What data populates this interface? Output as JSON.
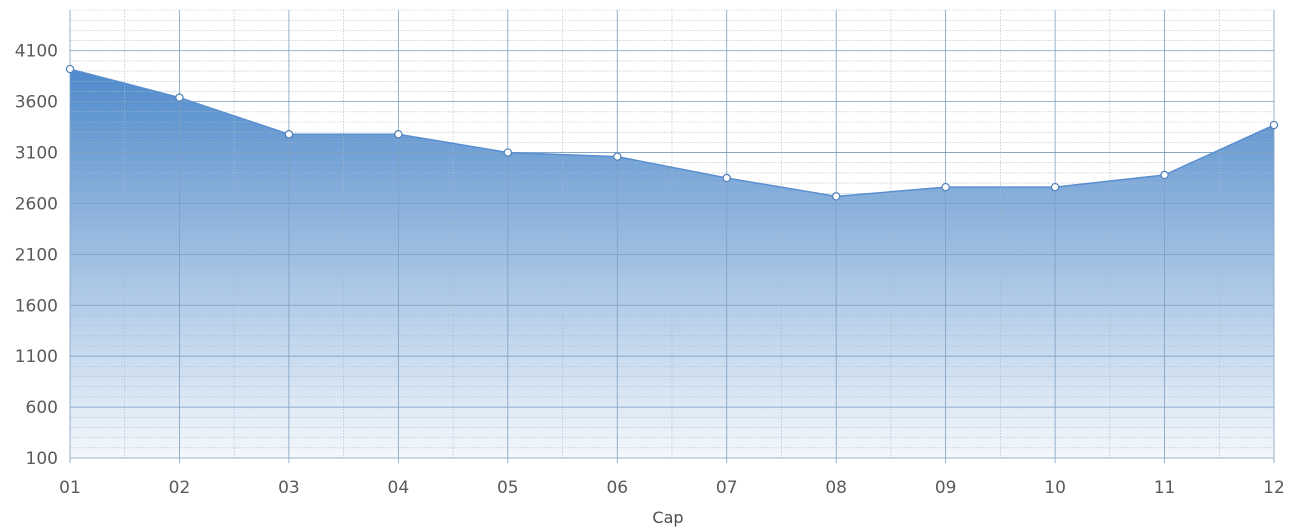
{
  "chart_data": {
    "type": "area",
    "title": "",
    "xlabel": "Cap",
    "ylabel": "",
    "categories": [
      "01",
      "02",
      "03",
      "04",
      "05",
      "06",
      "07",
      "08",
      "09",
      "10",
      "11",
      "12"
    ],
    "series": [
      {
        "values": [
          3920,
          3640,
          3280,
          3280,
          3100,
          3060,
          2850,
          2670,
          2760,
          2760,
          2880,
          3370
        ]
      }
    ],
    "yticks": [
      100,
      600,
      1100,
      1600,
      2100,
      2600,
      3100,
      3600,
      4100
    ],
    "ylim": [
      100,
      4500
    ],
    "grid": true,
    "legend": "none",
    "colors": {
      "line": "#5a8fcf",
      "fill_top": "#4f8acb",
      "fill_bottom": "#f4f8fc",
      "grid_major": "#7e9fbf",
      "grid_minor": "#a9b9c8",
      "marker_fill": "#ffffff",
      "marker_stroke": "#4f7fb8"
    }
  }
}
